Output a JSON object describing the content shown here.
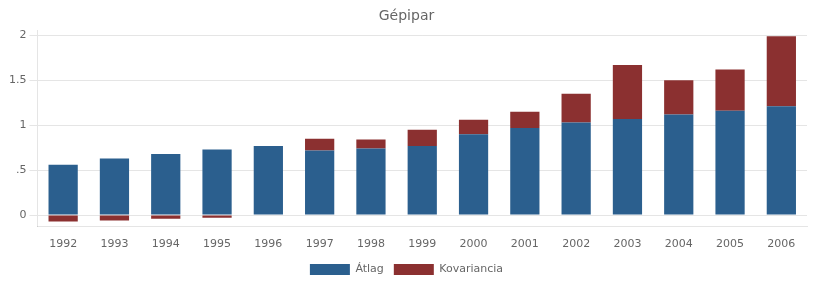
{
  "chart_data": {
    "type": "bar",
    "title": "Gépipar",
    "categories": [
      "1992",
      "1993",
      "1994",
      "1995",
      "1996",
      "1997",
      "1998",
      "1999",
      "2000",
      "2001",
      "2002",
      "2003",
      "2004",
      "2005",
      "2006"
    ],
    "series": [
      {
        "name": "Átlag",
        "color": "#2b5f8e",
        "values": [
          0.56,
          0.63,
          0.68,
          0.73,
          0.77,
          0.72,
          0.74,
          0.77,
          0.9,
          0.97,
          1.03,
          1.07,
          1.12,
          1.16,
          1.21
        ]
      },
      {
        "name": "Kovariancia",
        "color": "#8b3030",
        "values": [
          -0.07,
          -0.06,
          -0.04,
          -0.03,
          0.0,
          0.13,
          0.1,
          0.18,
          0.16,
          0.18,
          0.32,
          0.6,
          0.38,
          0.46,
          0.78
        ]
      }
    ],
    "stacked": true,
    "ylim": [
      -0.13,
      2.05
    ],
    "yticks": [
      0,
      {
        "value": 0.5,
        "label": ".5"
      },
      1,
      1.5,
      2
    ],
    "grid": true,
    "legend": "bottom"
  }
}
